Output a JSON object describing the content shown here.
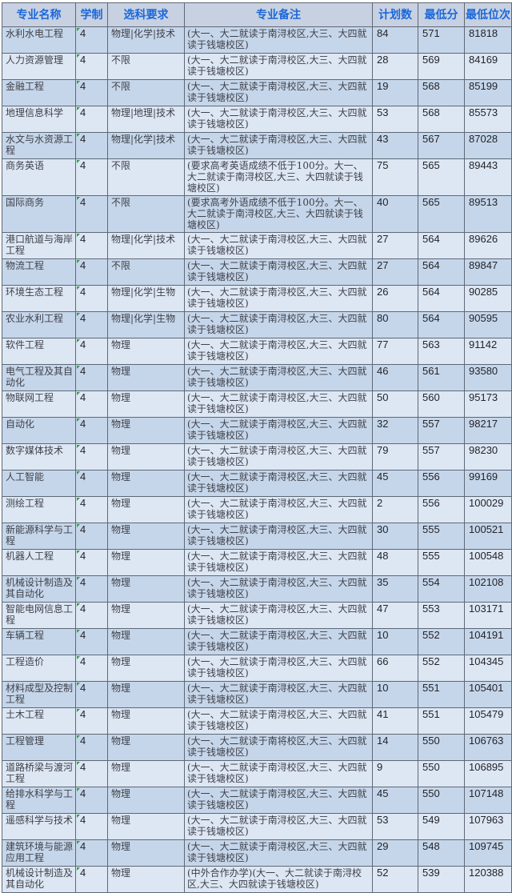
{
  "colors": {
    "header_text": "#1b67d9",
    "header_bg": "#c7d1e2",
    "row_dark_bg": "#c6d6ea",
    "row_light_bg": "#dde7f4",
    "grid_border": "#5e6876",
    "body_text": "#3e4049",
    "flag_green": "#2f9e41"
  },
  "icons": {
    "duration_cell_flag": "green-triangle-icon"
  },
  "table": {
    "columns": [
      {
        "id": "name",
        "label": "专业名称"
      },
      {
        "id": "duration",
        "label": "学制"
      },
      {
        "id": "subjects",
        "label": "选科要求"
      },
      {
        "id": "remark",
        "label": "专业备注"
      },
      {
        "id": "plan",
        "label": "计划数"
      },
      {
        "id": "min_score",
        "label": "最低分"
      },
      {
        "id": "min_rank",
        "label": "最低位次"
      }
    ],
    "rows": [
      {
        "name": "水利水电工程",
        "duration": "4",
        "subjects": "物理|化学|技术",
        "remark": "(大一、大二就读于南浔校区,大三、大四就读于钱塘校区)",
        "plan": "84",
        "min_score": "571",
        "min_rank": "81818"
      },
      {
        "name": "人力资源管理",
        "duration": "4",
        "subjects": "不限",
        "remark": "(大一、大二就读于南浔校区,大三、大四就读于钱塘校区)",
        "plan": "28",
        "min_score": "569",
        "min_rank": "84169"
      },
      {
        "name": "金融工程",
        "duration": "4",
        "subjects": "不限",
        "remark": "(大一、大二就读于南浔校区,大三、大四就读于钱塘校区)",
        "plan": "19",
        "min_score": "568",
        "min_rank": "85199"
      },
      {
        "name": "地理信息科学",
        "duration": "4",
        "subjects": "物理|地理|技术",
        "remark": "(大一、大二就读于南浔校区,大三、大四就读于钱塘校区)",
        "plan": "53",
        "min_score": "568",
        "min_rank": "85573"
      },
      {
        "name": "水文与水资源工程",
        "duration": "4",
        "subjects": "物理|化学|技术",
        "remark": "(大一、大二就读于南浔校区,大三、大四就读于钱塘校区)",
        "plan": "43",
        "min_score": "567",
        "min_rank": "87028"
      },
      {
        "name": "商务英语",
        "duration": "4",
        "subjects": "不限",
        "remark": "(要求高考英语成绩不低于100分。大一、大二就读于南浔校区,大三、大四就读于钱塘校区)",
        "plan": "75",
        "min_score": "565",
        "min_rank": "89443"
      },
      {
        "name": "国际商务",
        "duration": "4",
        "subjects": "不限",
        "remark": "(要求高考外语成绩不低于100分。大一、大二就读于南浔校区,大三、大四就读于钱塘校区)",
        "plan": "40",
        "min_score": "565",
        "min_rank": "89513"
      },
      {
        "name": "港口航道与海岸工程",
        "duration": "4",
        "subjects": "物理|化学|技术",
        "remark": "(大一、大二就读于南浔校区,大三、大四就读于钱塘校区)",
        "plan": "27",
        "min_score": "564",
        "min_rank": "89626"
      },
      {
        "name": "物流工程",
        "duration": "4",
        "subjects": "不限",
        "remark": "(大一、大二就读于南浔校区,大三、大四就读于钱塘校区)",
        "plan": "27",
        "min_score": "564",
        "min_rank": "89847"
      },
      {
        "name": "环境生态工程",
        "duration": "4",
        "subjects": "物理|化学|生物",
        "remark": "(大一、大二就读于南浔校区,大三、大四就读于钱塘校区)",
        "plan": "26",
        "min_score": "564",
        "min_rank": "90285"
      },
      {
        "name": "农业水利工程",
        "duration": "4",
        "subjects": "物理|化学|生物",
        "remark": "(大一、大二就读于南浔校区,大三、大四就读于钱塘校区)",
        "plan": "80",
        "min_score": "564",
        "min_rank": "90595"
      },
      {
        "name": "软件工程",
        "duration": "4",
        "subjects": "物理",
        "remark": "(大一、大二就读于南浔校区,大三、大四就读于钱塘校区)",
        "plan": "77",
        "min_score": "563",
        "min_rank": "91142"
      },
      {
        "name": "电气工程及其自动化",
        "duration": "4",
        "subjects": "物理",
        "remark": "(大一、大二就读于南浔校区,大三、大四就读于钱塘校区)",
        "plan": "46",
        "min_score": "561",
        "min_rank": "93580"
      },
      {
        "name": "物联网工程",
        "duration": "4",
        "subjects": "物理",
        "remark": "(大一、大二就读于南浔校区,大三、大四就读于钱塘校区)",
        "plan": "50",
        "min_score": "560",
        "min_rank": "95173"
      },
      {
        "name": "自动化",
        "duration": "4",
        "subjects": "物理",
        "remark": "(大一、大二就读于南浔校区,大三、大四就读于钱塘校区)",
        "plan": "32",
        "min_score": "557",
        "min_rank": "98217"
      },
      {
        "name": "数字媒体技术",
        "duration": "4",
        "subjects": "物理",
        "remark": "(大一、大二就读于南浔校区,大三、大四就读于钱塘校区)",
        "plan": "79",
        "min_score": "557",
        "min_rank": "98230"
      },
      {
        "name": "人工智能",
        "duration": "4",
        "subjects": "物理",
        "remark": "(大一、大二就读于南浔校区,大三、大四就读于钱塘校区)",
        "plan": "45",
        "min_score": "556",
        "min_rank": "99169"
      },
      {
        "name": "测绘工程",
        "duration": "4",
        "subjects": "物理",
        "remark": "(大一、大二就读于南浔校区,大三、大四就读于钱塘校区)",
        "plan": "2",
        "min_score": "556",
        "min_rank": "100029"
      },
      {
        "name": "新能源科学与工程",
        "duration": "4",
        "subjects": "物理",
        "remark": "(大一、大二就读于南浔校区,大三、大四就读于钱塘校区)",
        "plan": "30",
        "min_score": "555",
        "min_rank": "100521"
      },
      {
        "name": "机器人工程",
        "duration": "4",
        "subjects": "物理",
        "remark": "(大一、大二就读于南浔校区,大三、大四就读于钱塘校区)",
        "plan": "48",
        "min_score": "555",
        "min_rank": "100548"
      },
      {
        "name": "机械设计制造及其自动化",
        "duration": "4",
        "subjects": "物理",
        "remark": "(大一、大二就读于南浔校区,大三、大四就读于钱塘校区)",
        "plan": "35",
        "min_score": "554",
        "min_rank": "102108"
      },
      {
        "name": "智能电网信息工程",
        "duration": "4",
        "subjects": "物理",
        "remark": "(大一、大二就读于南浔校区,大三、大四就读于钱塘校区)",
        "plan": "47",
        "min_score": "553",
        "min_rank": "103171"
      },
      {
        "name": "车辆工程",
        "duration": "4",
        "subjects": "物理",
        "remark": "(大一、大二就读于南浔校区,大三、大四就读于钱塘校区)",
        "plan": "10",
        "min_score": "552",
        "min_rank": "104191"
      },
      {
        "name": "工程造价",
        "duration": "4",
        "subjects": "物理",
        "remark": "(大一、大二就读于南浔校区,大三、大四就读于钱塘校区)",
        "plan": "66",
        "min_score": "552",
        "min_rank": "104345"
      },
      {
        "name": "材料成型及控制工程",
        "duration": "4",
        "subjects": "物理",
        "remark": "(大一、大二就读于南浔校区,大三、大四就读于钱塘校区)",
        "plan": "10",
        "min_score": "551",
        "min_rank": "105401"
      },
      {
        "name": "土木工程",
        "duration": "4",
        "subjects": "物理",
        "remark": "(大一、大二就读于南浔校区,大三、大四就读于钱塘校区)",
        "plan": "41",
        "min_score": "551",
        "min_rank": "105479"
      },
      {
        "name": "工程管理",
        "duration": "4",
        "subjects": "物理",
        "remark": "(大一、大二就读于南将校区,大三、大四就读于钱塘校区)",
        "plan": "14",
        "min_score": "550",
        "min_rank": "106763"
      },
      {
        "name": "道路桥梁与渡河工程",
        "duration": "4",
        "subjects": "物理",
        "remark": "(大一、大二就读于南浔校区,大三、大四就读于钱塘校区)",
        "plan": "9",
        "min_score": "550",
        "min_rank": "106895"
      },
      {
        "name": "给排水科学与工程",
        "duration": "4",
        "subjects": "物理",
        "remark": "(大一、大二就读于南浔校区,大三、大四就读于钱塘校区)",
        "plan": "45",
        "min_score": "550",
        "min_rank": "107148"
      },
      {
        "name": "遥感科学与技术",
        "duration": "4",
        "subjects": "物理",
        "remark": "(大一、大二就读于南浔校区,大三、大四就读于钱塘校区)",
        "plan": "53",
        "min_score": "549",
        "min_rank": "107963"
      },
      {
        "name": "建筑环境与能源应用工程",
        "duration": "4",
        "subjects": "物理",
        "remark": "(大一、大二就读于南浔校区,大三、大四就读于钱塘校区)",
        "plan": "29",
        "min_score": "548",
        "min_rank": "109745"
      },
      {
        "name": "机械设计制造及其自动化",
        "duration": "4",
        "subjects": "物理",
        "remark": "(中外合作办学)(大一、大二就读于南浔校区,大三、大四就读于钱塘校区)",
        "plan": "52",
        "min_score": "539",
        "min_rank": "120388"
      }
    ]
  }
}
